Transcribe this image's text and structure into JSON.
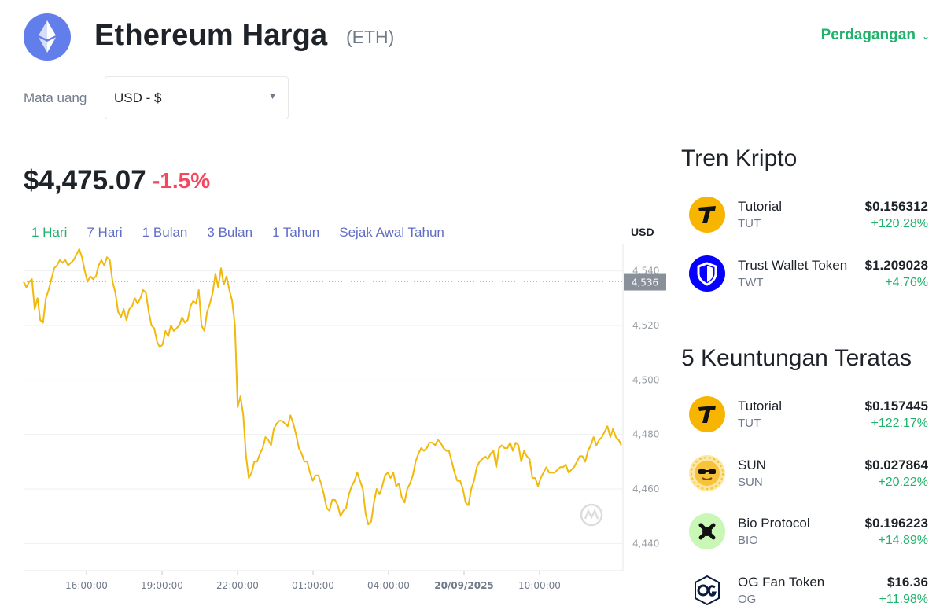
{
  "header": {
    "title": "Ethereum Harga",
    "symbol": "(ETH)",
    "trade_label": "Perdagangan",
    "trade_caret": "⌄"
  },
  "currency": {
    "label": "Mata uang",
    "selected": "USD - $",
    "caret": "▼"
  },
  "price": {
    "value": "$4,475.07",
    "change": "-1.5%"
  },
  "ranges": [
    {
      "label": "1 Hari",
      "active": true
    },
    {
      "label": "7 Hari",
      "active": false
    },
    {
      "label": "1 Bulan",
      "active": false
    },
    {
      "label": "3 Bulan",
      "active": false
    },
    {
      "label": "1 Tahun",
      "active": false
    },
    {
      "label": "Sejak Awal Tahun",
      "active": false
    }
  ],
  "chart_data": {
    "type": "line",
    "unit_label": "USD",
    "ylim": [
      4430,
      4550
    ],
    "y_ticks": [
      "4,540",
      "4,520",
      "4,500",
      "4,480",
      "4,460",
      "4,440"
    ],
    "x_ticks": [
      "16:00:00",
      "19:00:00",
      "22:00:00",
      "01:00:00",
      "04:00:00",
      "20/09/2025",
      "10:00:00"
    ],
    "current_marker": "4,536",
    "current_value": 4536,
    "grid": true,
    "line_color": "#f0b90b",
    "series": [
      {
        "values": [
          4536,
          4534,
          4536,
          4537,
          4526,
          4530,
          4522,
          4521,
          4530,
          4533,
          4537,
          4541,
          4542,
          4544,
          4543,
          4544,
          4542,
          4543,
          4544,
          4546,
          4548,
          4545,
          4540,
          4536,
          4538,
          4537,
          4538,
          4542,
          4544,
          4542,
          4545,
          4544,
          4536,
          4532,
          4525,
          4523,
          4526,
          4522,
          4526,
          4527,
          4530,
          4528,
          4530,
          4533,
          4532,
          4525,
          4520,
          4519,
          4514,
          4512,
          4513,
          4518,
          4516,
          4520,
          4518,
          4519,
          4520,
          4523,
          4521,
          4522,
          4527,
          4529,
          4528,
          4533,
          4520,
          4518,
          4525,
          4528,
          4532,
          4539,
          4534,
          4541,
          4535,
          4538,
          4533,
          4529,
          4520,
          4490,
          4494,
          4487,
          4472,
          4464,
          4466,
          4470,
          4470,
          4473,
          4475,
          4479,
          4478,
          4476,
          4482,
          4484,
          4485,
          4485,
          4484,
          4483,
          4487,
          4484,
          4480,
          4475,
          4473,
          4470,
          4470,
          4466,
          4463,
          4465,
          4465,
          4462,
          4458,
          4453,
          4452,
          4456,
          4456,
          4454,
          4450,
          4452,
          4453,
          4458,
          4461,
          4463,
          4466,
          4463,
          4460,
          4451,
          4447,
          4448,
          4455,
          4460,
          4458,
          4461,
          4465,
          4466,
          4464,
          4466,
          4461,
          4462,
          4457,
          4455,
          4460,
          4462,
          4465,
          4470,
          4473,
          4475,
          4474,
          4475,
          4477,
          4477,
          4476,
          4478,
          4477,
          4475,
          4474,
          4474,
          4470,
          4466,
          4463,
          4463,
          4460,
          4455,
          4454,
          4460,
          4463,
          4468,
          4470,
          4471,
          4472,
          4471,
          4473,
          4474,
          4468,
          4475,
          4476,
          4475,
          4475,
          4477,
          4474,
          4477,
          4476,
          4470,
          4474,
          4472,
          4471,
          4464,
          4464,
          4461,
          4464,
          4466,
          4468,
          4466,
          4466,
          4466,
          4467,
          4468,
          4468,
          4469,
          4466,
          4467,
          4468,
          4470,
          4472,
          4472,
          4470,
          4474,
          4476,
          4479,
          4476,
          4478,
          4479,
          4481,
          4483,
          4479,
          4482,
          4479,
          4478,
          4476
        ]
      }
    ]
  },
  "trending": {
    "title": "Tren Kripto",
    "items": [
      {
        "name": "Tutorial",
        "symbol": "TUT",
        "price": "$0.156312",
        "change": "+120.28%",
        "icon": "tutorial-icon"
      },
      {
        "name": "Trust Wallet Token",
        "symbol": "TWT",
        "price": "$1.209028",
        "change": "+4.76%",
        "icon": "trust-wallet-icon"
      }
    ]
  },
  "gainers": {
    "title": "5 Keuntungan Teratas",
    "items": [
      {
        "name": "Tutorial",
        "symbol": "TUT",
        "price": "$0.157445",
        "change": "+122.17%",
        "icon": "tutorial-icon"
      },
      {
        "name": "SUN",
        "symbol": "SUN",
        "price": "$0.027864",
        "change": "+20.22%",
        "icon": "sun-icon"
      },
      {
        "name": "Bio Protocol",
        "symbol": "BIO",
        "price": "$0.196223",
        "change": "+14.89%",
        "icon": "bio-protocol-icon"
      },
      {
        "name": "OG Fan Token",
        "symbol": "OG",
        "price": "$16.36",
        "change": "+11.98%",
        "icon": "og-fan-token-icon"
      }
    ]
  },
  "colors": {
    "positive": "#20b26c",
    "negative": "#f6465d",
    "range_link": "#5f6dc7",
    "eth_brand": "#627eea"
  }
}
